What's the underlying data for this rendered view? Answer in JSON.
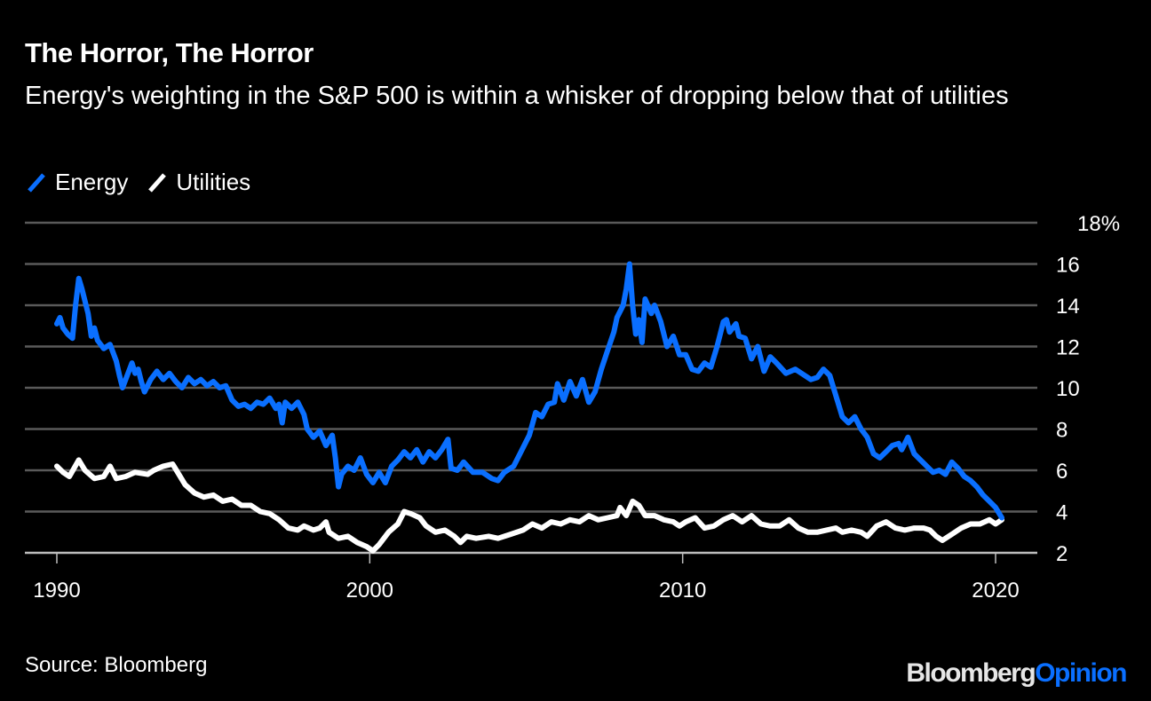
{
  "chart_data": {
    "type": "line",
    "title": "The Horror, The Horror",
    "subtitle": "Energy's weighting in the S&P 500 is within a whisker of dropping below that of utilities",
    "xlabel": "",
    "ylabel": "",
    "xlim": [
      1989,
      2021.3
    ],
    "ylim": [
      2,
      18
    ],
    "x_ticks": [
      1990,
      2000,
      2010,
      2020
    ],
    "x_tick_labels": [
      "1990",
      "2000",
      "2010",
      "2020"
    ],
    "y_ticks": [
      2,
      4,
      6,
      8,
      10,
      12,
      14,
      16,
      18
    ],
    "y_tick_labels": [
      "2",
      "4",
      "6",
      "8",
      "10",
      "12",
      "14",
      "16",
      "18%"
    ],
    "grid": true,
    "legend_position": "top-left",
    "series": [
      {
        "name": "Energy",
        "color": "#0a6fff",
        "points": [
          [
            1990.0,
            13.1
          ],
          [
            1990.1,
            13.4
          ],
          [
            1990.2,
            12.9
          ],
          [
            1990.35,
            12.6
          ],
          [
            1990.5,
            12.4
          ],
          [
            1990.6,
            14.0
          ],
          [
            1990.7,
            15.3
          ],
          [
            1990.8,
            14.8
          ],
          [
            1990.9,
            14.2
          ],
          [
            1991.0,
            13.6
          ],
          [
            1991.1,
            12.5
          ],
          [
            1991.2,
            12.9
          ],
          [
            1991.3,
            12.3
          ],
          [
            1991.5,
            11.9
          ],
          [
            1991.7,
            12.1
          ],
          [
            1991.9,
            11.3
          ],
          [
            1992.0,
            10.6
          ],
          [
            1992.1,
            10.0
          ],
          [
            1992.2,
            10.4
          ],
          [
            1992.4,
            11.2
          ],
          [
            1992.5,
            10.7
          ],
          [
            1992.6,
            10.9
          ],
          [
            1992.7,
            10.3
          ],
          [
            1992.8,
            9.8
          ],
          [
            1993.0,
            10.4
          ],
          [
            1993.2,
            10.8
          ],
          [
            1993.4,
            10.4
          ],
          [
            1993.6,
            10.7
          ],
          [
            1993.8,
            10.3
          ],
          [
            1994.0,
            10.0
          ],
          [
            1994.2,
            10.5
          ],
          [
            1994.4,
            10.2
          ],
          [
            1994.6,
            10.4
          ],
          [
            1994.8,
            10.1
          ],
          [
            1995.0,
            10.3
          ],
          [
            1995.2,
            10.0
          ],
          [
            1995.4,
            10.1
          ],
          [
            1995.6,
            9.4
          ],
          [
            1995.8,
            9.1
          ],
          [
            1996.0,
            9.2
          ],
          [
            1996.2,
            9.0
          ],
          [
            1996.4,
            9.3
          ],
          [
            1996.6,
            9.2
          ],
          [
            1996.8,
            9.5
          ],
          [
            1997.0,
            9.0
          ],
          [
            1997.1,
            9.2
          ],
          [
            1997.2,
            8.3
          ],
          [
            1997.3,
            9.3
          ],
          [
            1997.5,
            9.0
          ],
          [
            1997.7,
            9.3
          ],
          [
            1997.9,
            8.7
          ],
          [
            1998.0,
            8.0
          ],
          [
            1998.2,
            7.6
          ],
          [
            1998.4,
            7.9
          ],
          [
            1998.6,
            7.2
          ],
          [
            1998.8,
            7.7
          ],
          [
            1998.9,
            6.6
          ],
          [
            1999.0,
            5.2
          ],
          [
            1999.1,
            5.8
          ],
          [
            1999.3,
            6.2
          ],
          [
            1999.5,
            6.0
          ],
          [
            1999.7,
            6.6
          ],
          [
            1999.9,
            5.8
          ],
          [
            2000.1,
            5.4
          ],
          [
            2000.3,
            5.9
          ],
          [
            2000.5,
            5.4
          ],
          [
            2000.7,
            6.2
          ],
          [
            2000.9,
            6.5
          ],
          [
            2001.1,
            6.9
          ],
          [
            2001.3,
            6.6
          ],
          [
            2001.5,
            7.0
          ],
          [
            2001.7,
            6.4
          ],
          [
            2001.9,
            6.9
          ],
          [
            2002.1,
            6.6
          ],
          [
            2002.3,
            7.0
          ],
          [
            2002.5,
            7.5
          ],
          [
            2002.6,
            6.1
          ],
          [
            2002.8,
            6.0
          ],
          [
            2003.0,
            6.4
          ],
          [
            2003.3,
            5.9
          ],
          [
            2003.6,
            5.9
          ],
          [
            2003.9,
            5.6
          ],
          [
            2004.1,
            5.5
          ],
          [
            2004.3,
            5.9
          ],
          [
            2004.6,
            6.2
          ],
          [
            2004.9,
            7.1
          ],
          [
            2005.1,
            7.7
          ],
          [
            2005.3,
            8.8
          ],
          [
            2005.5,
            8.6
          ],
          [
            2005.7,
            9.2
          ],
          [
            2005.9,
            9.3
          ],
          [
            2006.0,
            10.2
          ],
          [
            2006.2,
            9.4
          ],
          [
            2006.4,
            10.3
          ],
          [
            2006.6,
            9.6
          ],
          [
            2006.8,
            10.4
          ],
          [
            2007.0,
            9.3
          ],
          [
            2007.2,
            9.8
          ],
          [
            2007.4,
            10.9
          ],
          [
            2007.6,
            11.8
          ],
          [
            2007.8,
            12.7
          ],
          [
            2007.9,
            13.4
          ],
          [
            2008.1,
            14.0
          ],
          [
            2008.2,
            14.8
          ],
          [
            2008.3,
            16.0
          ],
          [
            2008.4,
            14.0
          ],
          [
            2008.5,
            12.6
          ],
          [
            2008.6,
            13.3
          ],
          [
            2008.7,
            12.2
          ],
          [
            2008.8,
            14.3
          ],
          [
            2009.0,
            13.6
          ],
          [
            2009.1,
            14.0
          ],
          [
            2009.3,
            13.2
          ],
          [
            2009.5,
            12.0
          ],
          [
            2009.7,
            12.5
          ],
          [
            2009.9,
            11.6
          ],
          [
            2010.1,
            11.6
          ],
          [
            2010.3,
            10.9
          ],
          [
            2010.5,
            10.8
          ],
          [
            2010.7,
            11.2
          ],
          [
            2010.9,
            11.0
          ],
          [
            2011.1,
            12.0
          ],
          [
            2011.3,
            13.2
          ],
          [
            2011.4,
            13.3
          ],
          [
            2011.5,
            12.7
          ],
          [
            2011.7,
            13.1
          ],
          [
            2011.8,
            12.5
          ],
          [
            2012.0,
            12.4
          ],
          [
            2012.2,
            11.4
          ],
          [
            2012.4,
            12.0
          ],
          [
            2012.6,
            10.8
          ],
          [
            2012.8,
            11.5
          ],
          [
            2013.0,
            11.2
          ],
          [
            2013.3,
            10.7
          ],
          [
            2013.6,
            10.9
          ],
          [
            2013.9,
            10.6
          ],
          [
            2014.1,
            10.4
          ],
          [
            2014.3,
            10.5
          ],
          [
            2014.5,
            10.9
          ],
          [
            2014.7,
            10.6
          ],
          [
            2014.9,
            9.6
          ],
          [
            2015.1,
            8.6
          ],
          [
            2015.3,
            8.3
          ],
          [
            2015.5,
            8.6
          ],
          [
            2015.7,
            8.0
          ],
          [
            2015.9,
            7.6
          ],
          [
            2016.1,
            6.8
          ],
          [
            2016.3,
            6.6
          ],
          [
            2016.5,
            6.9
          ],
          [
            2016.7,
            7.2
          ],
          [
            2016.9,
            7.3
          ],
          [
            2017.0,
            7.0
          ],
          [
            2017.2,
            7.6
          ],
          [
            2017.4,
            6.8
          ],
          [
            2017.6,
            6.5
          ],
          [
            2017.8,
            6.2
          ],
          [
            2018.0,
            5.9
          ],
          [
            2018.2,
            6.0
          ],
          [
            2018.4,
            5.8
          ],
          [
            2018.6,
            6.4
          ],
          [
            2018.8,
            6.1
          ],
          [
            2019.0,
            5.7
          ],
          [
            2019.2,
            5.5
          ],
          [
            2019.4,
            5.2
          ],
          [
            2019.6,
            4.8
          ],
          [
            2019.8,
            4.5
          ],
          [
            2020.0,
            4.2
          ],
          [
            2020.2,
            3.7
          ]
        ]
      },
      {
        "name": "Utilities",
        "color": "#ffffff",
        "points": [
          [
            1990.0,
            6.2
          ],
          [
            1990.2,
            5.9
          ],
          [
            1990.4,
            5.7
          ],
          [
            1990.7,
            6.5
          ],
          [
            1990.9,
            6.0
          ],
          [
            1991.2,
            5.6
          ],
          [
            1991.5,
            5.7
          ],
          [
            1991.7,
            6.2
          ],
          [
            1991.9,
            5.6
          ],
          [
            1992.2,
            5.7
          ],
          [
            1992.5,
            5.9
          ],
          [
            1992.9,
            5.8
          ],
          [
            1993.1,
            6.0
          ],
          [
            1993.4,
            6.2
          ],
          [
            1993.7,
            6.3
          ],
          [
            1993.9,
            5.8
          ],
          [
            1994.1,
            5.3
          ],
          [
            1994.4,
            4.9
          ],
          [
            1994.7,
            4.7
          ],
          [
            1995.0,
            4.8
          ],
          [
            1995.3,
            4.5
          ],
          [
            1995.6,
            4.6
          ],
          [
            1995.9,
            4.3
          ],
          [
            1996.2,
            4.3
          ],
          [
            1996.5,
            4.0
          ],
          [
            1996.8,
            3.9
          ],
          [
            1997.1,
            3.6
          ],
          [
            1997.4,
            3.2
          ],
          [
            1997.7,
            3.1
          ],
          [
            1997.9,
            3.3
          ],
          [
            1998.2,
            3.1
          ],
          [
            1998.4,
            3.2
          ],
          [
            1998.6,
            3.5
          ],
          [
            1998.7,
            3.0
          ],
          [
            1999.0,
            2.7
          ],
          [
            1999.3,
            2.8
          ],
          [
            1999.6,
            2.5
          ],
          [
            1999.9,
            2.3
          ],
          [
            2000.1,
            2.1
          ],
          [
            2000.3,
            2.4
          ],
          [
            2000.6,
            3.0
          ],
          [
            2000.9,
            3.4
          ],
          [
            2001.1,
            4.0
          ],
          [
            2001.3,
            3.9
          ],
          [
            2001.6,
            3.7
          ],
          [
            2001.8,
            3.3
          ],
          [
            2002.1,
            3.0
          ],
          [
            2002.4,
            3.1
          ],
          [
            2002.7,
            2.8
          ],
          [
            2002.9,
            2.5
          ],
          [
            2003.1,
            2.8
          ],
          [
            2003.4,
            2.7
          ],
          [
            2003.8,
            2.8
          ],
          [
            2004.1,
            2.7
          ],
          [
            2004.5,
            2.9
          ],
          [
            2004.9,
            3.1
          ],
          [
            2005.2,
            3.4
          ],
          [
            2005.5,
            3.2
          ],
          [
            2005.8,
            3.5
          ],
          [
            2006.1,
            3.4
          ],
          [
            2006.4,
            3.6
          ],
          [
            2006.7,
            3.5
          ],
          [
            2007.0,
            3.8
          ],
          [
            2007.3,
            3.6
          ],
          [
            2007.6,
            3.7
          ],
          [
            2007.9,
            3.8
          ],
          [
            2008.0,
            4.2
          ],
          [
            2008.2,
            3.8
          ],
          [
            2008.4,
            4.5
          ],
          [
            2008.6,
            4.3
          ],
          [
            2008.8,
            3.8
          ],
          [
            2009.1,
            3.8
          ],
          [
            2009.4,
            3.6
          ],
          [
            2009.7,
            3.5
          ],
          [
            2009.9,
            3.3
          ],
          [
            2010.1,
            3.5
          ],
          [
            2010.4,
            3.7
          ],
          [
            2010.7,
            3.2
          ],
          [
            2011.0,
            3.3
          ],
          [
            2011.3,
            3.6
          ],
          [
            2011.6,
            3.8
          ],
          [
            2011.9,
            3.5
          ],
          [
            2012.2,
            3.8
          ],
          [
            2012.5,
            3.4
          ],
          [
            2012.8,
            3.3
          ],
          [
            2013.1,
            3.3
          ],
          [
            2013.4,
            3.6
          ],
          [
            2013.7,
            3.2
          ],
          [
            2014.0,
            3.0
          ],
          [
            2014.3,
            3.0
          ],
          [
            2014.6,
            3.1
          ],
          [
            2014.9,
            3.2
          ],
          [
            2015.1,
            3.0
          ],
          [
            2015.4,
            3.1
          ],
          [
            2015.7,
            3.0
          ],
          [
            2015.9,
            2.8
          ],
          [
            2016.2,
            3.3
          ],
          [
            2016.5,
            3.5
          ],
          [
            2016.8,
            3.2
          ],
          [
            2017.1,
            3.1
          ],
          [
            2017.4,
            3.2
          ],
          [
            2017.7,
            3.2
          ],
          [
            2017.9,
            3.1
          ],
          [
            2018.1,
            2.8
          ],
          [
            2018.3,
            2.6
          ],
          [
            2018.6,
            2.9
          ],
          [
            2018.9,
            3.2
          ],
          [
            2019.2,
            3.4
          ],
          [
            2019.5,
            3.4
          ],
          [
            2019.8,
            3.6
          ],
          [
            2020.0,
            3.4
          ],
          [
            2020.2,
            3.6
          ]
        ]
      }
    ]
  },
  "legend": {
    "items": [
      {
        "label": "Energy",
        "color": "#0a6fff"
      },
      {
        "label": "Utilities",
        "color": "#ffffff"
      }
    ]
  },
  "footer": {
    "source": "Source: Bloomberg",
    "brand_primary": "Bloomberg",
    "brand_secondary": "Opinion"
  }
}
